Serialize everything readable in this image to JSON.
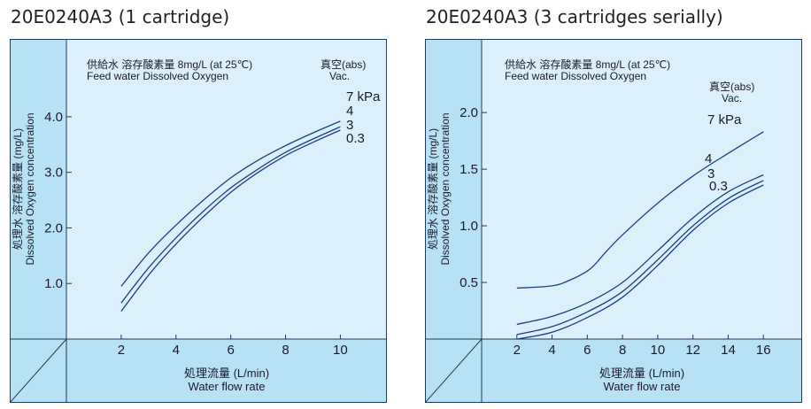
{
  "colors": {
    "band": "#b7e2f5",
    "plot": "#dcf0fb",
    "frame": "#1f3a5a",
    "curve": "#1a3f86"
  },
  "chart_data": [
    {
      "type": "line",
      "title": "20E0240A3 (1 cartridge)",
      "note_jp": "供給水 溶存酸素量  8mg/L (at 25℃)",
      "note_en": "Feed water Dissolved Oxygen",
      "vac_title": "真空(abs)",
      "vac_subtitle": "Vac.",
      "xlabel_jp": "処理流量 (L/min)",
      "xlabel_en": "Water flow rate",
      "ylabel_jp": "処理水 溶存酸素量  (mg/L)",
      "ylabel_en": "Dissolved Oxygen concentration",
      "xlim": [
        0,
        11.7
      ],
      "ylim": [
        0,
        5.4
      ],
      "xticks": [
        "2",
        "4",
        "6",
        "8",
        "10"
      ],
      "yticks": [
        "1.0",
        "2.0",
        "3.0",
        "4.0"
      ],
      "grid": false,
      "series": [
        {
          "name": "7 kPa",
          "x": [
            2,
            3,
            4,
            5,
            6,
            7,
            8,
            9,
            10
          ],
          "y": [
            0.95,
            1.55,
            2.05,
            2.5,
            2.9,
            3.22,
            3.48,
            3.71,
            3.92
          ]
        },
        {
          "name": "4",
          "x": [
            2,
            3,
            4,
            5,
            6,
            7,
            8,
            9,
            10
          ],
          "y": [
            0.65,
            1.28,
            1.82,
            2.3,
            2.72,
            3.06,
            3.36,
            3.6,
            3.82
          ]
        },
        {
          "name": "3",
          "x": [
            2,
            3,
            4,
            5,
            6,
            7,
            8,
            9,
            10
          ],
          "y": [
            0.5,
            1.15,
            1.71,
            2.2,
            2.64,
            3.0,
            3.3,
            3.54,
            3.76
          ]
        },
        {
          "name": "0.3",
          "x": [],
          "y": []
        }
      ]
    },
    {
      "type": "line",
      "title": "20E0240A3 (3 cartridges serially)",
      "note_jp": "供給水 溶存酸素量  8mg/L (at 25℃)",
      "note_en": "Feed water Dissolved Oxygen",
      "vac_title": "真空(abs)",
      "vac_subtitle": "Vac.",
      "xlabel_jp": "処理流量 (L/min)",
      "xlabel_en": "Water flow rate",
      "ylabel_jp": "処理水 溶存酸素量  (mg/L)",
      "ylabel_en": "Dissolved Oxygen concentration",
      "xlim": [
        0,
        18.2
      ],
      "ylim": [
        0,
        2.65
      ],
      "xticks": [
        "2",
        "4",
        "6",
        "8",
        "10",
        "12",
        "14",
        "16"
      ],
      "yticks": [
        "0.5",
        "1.0",
        "1.5",
        "2.0"
      ],
      "grid": false,
      "series": [
        {
          "name": "7 kPa",
          "x": [
            2,
            4,
            5,
            6,
            6.5,
            7,
            8,
            10,
            12,
            14,
            16
          ],
          "y": [
            0.45,
            0.47,
            0.52,
            0.6,
            0.67,
            0.76,
            0.92,
            1.2,
            1.44,
            1.64,
            1.83
          ]
        },
        {
          "name": "4",
          "x": [
            2,
            4,
            6,
            8,
            10,
            12,
            14,
            16
          ],
          "y": [
            0.13,
            0.2,
            0.32,
            0.5,
            0.78,
            1.07,
            1.3,
            1.45
          ]
        },
        {
          "name": "3",
          "x": [
            2,
            4,
            6,
            8,
            10,
            12,
            14,
            16
          ],
          "y": [
            0.04,
            0.11,
            0.24,
            0.42,
            0.7,
            1.0,
            1.24,
            1.4
          ]
        },
        {
          "name": "0.3",
          "x": [
            2,
            4,
            6,
            8,
            10,
            12,
            14,
            16
          ],
          "y": [
            0.0,
            0.06,
            0.19,
            0.37,
            0.65,
            0.96,
            1.2,
            1.36
          ]
        }
      ]
    }
  ]
}
